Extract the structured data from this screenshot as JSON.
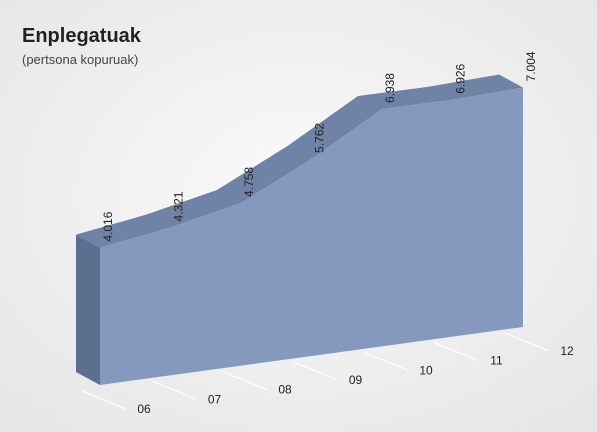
{
  "chart_data": {
    "type": "area3d",
    "title": "Enplegatuak",
    "subtitle": "(pertsona kopuruak)",
    "categories": [
      "06",
      "07",
      "08",
      "09",
      "10",
      "11",
      "12"
    ],
    "values": [
      4016,
      4321,
      4758,
      5762,
      6938,
      6926,
      7004
    ],
    "value_labels": [
      "4.016",
      "4.321",
      "4.758",
      "5.762",
      "6.938",
      "6.926",
      "7.004"
    ],
    "color": "#8499bd"
  }
}
